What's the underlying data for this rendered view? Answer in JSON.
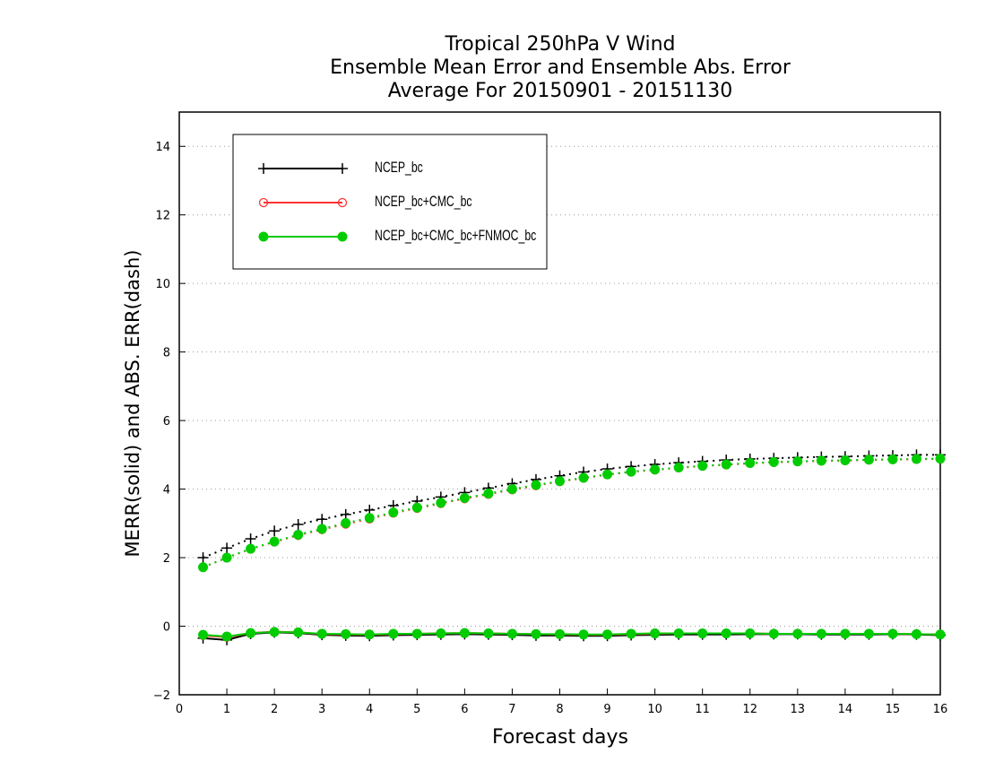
{
  "chart_data": {
    "type": "line",
    "title": [
      "Tropical 250hPa V Wind",
      "Ensemble Mean Error and Ensemble Abs. Error",
      "Average For 20150901 - 20151130"
    ],
    "xlabel": "Forecast days",
    "ylabel": "MERR(solid) and ABS. ERR(dash)",
    "xlim": [
      0,
      16
    ],
    "ylim": [
      -2,
      15
    ],
    "xticks": [
      "0",
      "1",
      "2",
      "3",
      "4",
      "5",
      "6",
      "7",
      "8",
      "9",
      "10",
      "11",
      "12",
      "13",
      "14",
      "15",
      "16"
    ],
    "yticks": [
      "-2",
      "0",
      "2",
      "4",
      "6",
      "8",
      "10",
      "12",
      "14"
    ],
    "grid": "horizontal dotted",
    "legend_placement": "top-left",
    "x": [
      0.5,
      1,
      1.5,
      2,
      2.5,
      3,
      3.5,
      4,
      4.5,
      5,
      5.5,
      6,
      6.5,
      7,
      7.5,
      8,
      8.5,
      9,
      9.5,
      10,
      10.5,
      11,
      11.5,
      12,
      12.5,
      13,
      13.5,
      14,
      14.5,
      15,
      15.5,
      16
    ],
    "series": [
      {
        "name": "NCEP_bc",
        "color": "#000000",
        "marker": "plus",
        "merr": [
          -0.35,
          -0.4,
          -0.22,
          -0.18,
          -0.2,
          -0.25,
          -0.27,
          -0.28,
          -0.26,
          -0.25,
          -0.24,
          -0.23,
          -0.24,
          -0.25,
          -0.27,
          -0.27,
          -0.28,
          -0.28,
          -0.26,
          -0.25,
          -0.24,
          -0.24,
          -0.24,
          -0.23,
          -0.23,
          -0.23,
          -0.24,
          -0.24,
          -0.24,
          -0.23,
          -0.24,
          -0.26
        ],
        "abs_err": [
          2.0,
          2.28,
          2.55,
          2.78,
          2.97,
          3.12,
          3.26,
          3.39,
          3.52,
          3.65,
          3.77,
          3.9,
          4.03,
          4.16,
          4.28,
          4.39,
          4.5,
          4.59,
          4.66,
          4.72,
          4.77,
          4.81,
          4.85,
          4.88,
          4.9,
          4.92,
          4.94,
          4.95,
          4.97,
          4.98,
          5.0,
          5.0
        ]
      },
      {
        "name": "NCEP_bc+CMC_bc",
        "color": "#ff3333",
        "marker": "open-circle",
        "merr": [
          -0.27,
          -0.32,
          -0.2,
          -0.16,
          -0.18,
          -0.23,
          -0.24,
          -0.25,
          -0.23,
          -0.22,
          -0.21,
          -0.2,
          -0.21,
          -0.22,
          -0.23,
          -0.24,
          -0.25,
          -0.25,
          -0.23,
          -0.22,
          -0.21,
          -0.21,
          -0.21,
          -0.21,
          -0.22,
          -0.22,
          -0.22,
          -0.22,
          -0.22,
          -0.22,
          -0.23,
          -0.24
        ],
        "abs_err": [
          1.72,
          2.0,
          2.25,
          2.46,
          2.65,
          2.82,
          2.98,
          3.13,
          3.3,
          3.44,
          3.58,
          3.72,
          3.85,
          3.98,
          4.1,
          4.22,
          4.32,
          4.42,
          4.5,
          4.56,
          4.62,
          4.67,
          4.71,
          4.75,
          4.78,
          4.8,
          4.82,
          4.83,
          4.85,
          4.86,
          4.87,
          4.88
        ]
      },
      {
        "name": "NCEP_bc+CMC_bc+FNMOC_bc",
        "color": "#00cc00",
        "marker": "filled-circle",
        "merr": [
          -0.25,
          -0.3,
          -0.2,
          -0.17,
          -0.18,
          -0.22,
          -0.23,
          -0.24,
          -0.22,
          -0.22,
          -0.21,
          -0.2,
          -0.21,
          -0.22,
          -0.23,
          -0.23,
          -0.24,
          -0.24,
          -0.22,
          -0.21,
          -0.21,
          -0.21,
          -0.21,
          -0.21,
          -0.22,
          -0.22,
          -0.22,
          -0.22,
          -0.22,
          -0.22,
          -0.23,
          -0.24
        ],
        "abs_err": [
          1.72,
          2.0,
          2.26,
          2.47,
          2.67,
          2.84,
          3.01,
          3.16,
          3.32,
          3.46,
          3.6,
          3.74,
          3.87,
          4.0,
          4.12,
          4.23,
          4.33,
          4.43,
          4.51,
          4.57,
          4.63,
          4.68,
          4.72,
          4.76,
          4.79,
          4.81,
          4.83,
          4.84,
          4.86,
          4.87,
          4.88,
          4.89
        ]
      }
    ]
  }
}
